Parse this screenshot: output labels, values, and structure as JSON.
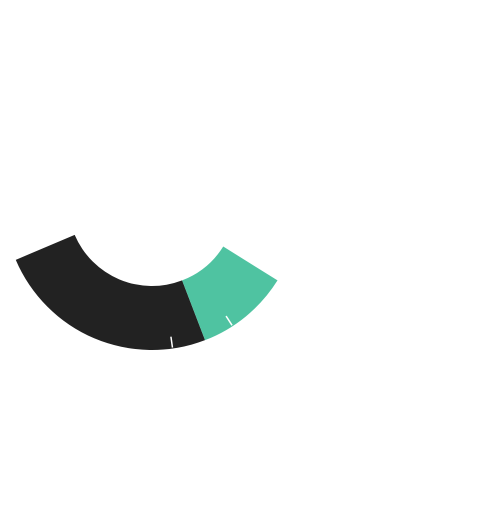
{
  "chart_data": {
    "type": "gauge",
    "series": [
      {
        "color": "#222222",
        "values": [
          88
        ]
      },
      {
        "color": "#4fc3a1",
        "values": [
          37
        ]
      }
    ],
    "markers": [
      75,
      100
    ],
    "marker_color": "#ffffff"
  }
}
